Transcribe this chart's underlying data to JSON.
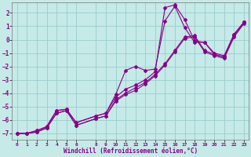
{
  "xlabel": "Windchill (Refroidissement éolien,°C)",
  "ylabel": "",
  "xlim": [
    -0.5,
    23.5
  ],
  "ylim": [
    -7.5,
    2.8
  ],
  "yticks": [
    -7,
    -6,
    -5,
    -4,
    -3,
    -2,
    -1,
    0,
    1,
    2
  ],
  "xticks": [
    0,
    1,
    2,
    3,
    4,
    5,
    6,
    8,
    9,
    10,
    11,
    12,
    13,
    14,
    15,
    16,
    17,
    18,
    19,
    20,
    21,
    22,
    23
  ],
  "bg_color": "#c5eae7",
  "line_color": "#880088",
  "grid_color": "#99cccc",
  "lines": [
    {
      "x": [
        0,
        1,
        2,
        3,
        4,
        5,
        6,
        8,
        9,
        10,
        11,
        12,
        13,
        14,
        15,
        16,
        17,
        18,
        19,
        20,
        21,
        22,
        23
      ],
      "y": [
        -7,
        -7,
        -6.8,
        -6.5,
        -5.3,
        -5.2,
        -6.2,
        -5.7,
        -5.5,
        -4.1,
        -2.3,
        -2.0,
        -2.3,
        -2.2,
        1.4,
        2.5,
        0.9,
        -0.2,
        -0.2,
        -1.1,
        -1.3,
        0.4,
        1.3
      ]
    },
    {
      "x": [
        0,
        1,
        2,
        3,
        4,
        5,
        6,
        8,
        9,
        10,
        11,
        12,
        13,
        14,
        15,
        16,
        17,
        18,
        19,
        20,
        21,
        22,
        23
      ],
      "y": [
        -7,
        -7,
        -6.8,
        -6.5,
        -5.3,
        -5.2,
        -6.2,
        -5.7,
        -5.5,
        -4.3,
        -3.7,
        -3.4,
        -3.0,
        -2.4,
        2.4,
        2.6,
        1.5,
        -0.1,
        -0.2,
        -1.0,
        -1.2,
        0.4,
        1.3
      ]
    },
    {
      "x": [
        0,
        1,
        2,
        3,
        4,
        5,
        6,
        8,
        9,
        10,
        11,
        12,
        13,
        14,
        15,
        16,
        17,
        18,
        19,
        20,
        21,
        22,
        23
      ],
      "y": [
        -7,
        -7,
        -6.9,
        -6.6,
        -5.5,
        -5.3,
        -6.4,
        -5.9,
        -5.7,
        -4.5,
        -4.0,
        -3.6,
        -3.2,
        -2.6,
        -1.8,
        -0.8,
        0.2,
        0.3,
        -0.8,
        -1.1,
        -1.3,
        0.3,
        1.3
      ]
    },
    {
      "x": [
        0,
        1,
        2,
        3,
        4,
        5,
        6,
        8,
        9,
        10,
        11,
        12,
        13,
        14,
        15,
        16,
        17,
        18,
        19,
        20,
        21,
        22,
        23
      ],
      "y": [
        -7,
        -7,
        -6.9,
        -6.6,
        -5.5,
        -5.3,
        -6.4,
        -5.9,
        -5.7,
        -4.6,
        -4.1,
        -3.8,
        -3.3,
        -2.7,
        -1.9,
        -0.9,
        0.1,
        0.2,
        -0.9,
        -1.2,
        -1.4,
        0.2,
        1.2
      ]
    }
  ]
}
